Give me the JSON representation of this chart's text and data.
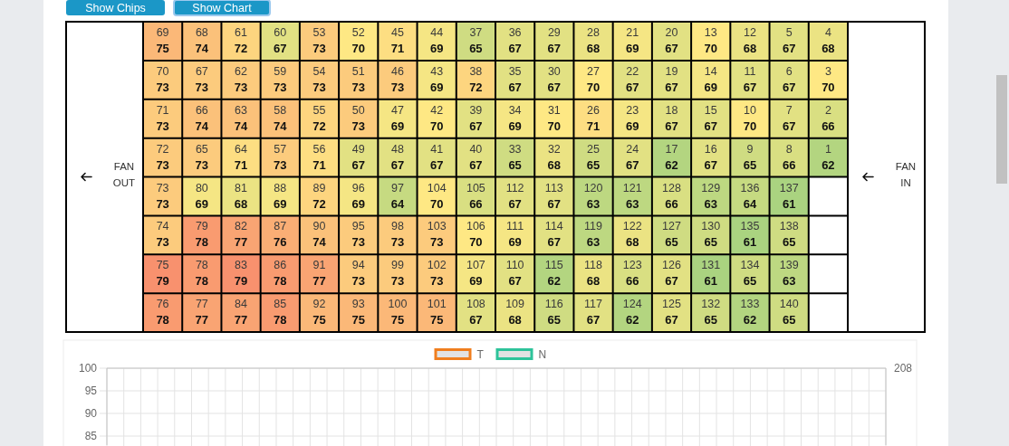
{
  "chart_data": [
    {
      "type": "heatmap",
      "categories": [
        null,
        null,
        null,
        null,
        null,
        null,
        null,
        null,
        null,
        null,
        null,
        null,
        null,
        null,
        null,
        null,
        null,
        null
      ],
      "y_categories": [
        null,
        null,
        null,
        null,
        null,
        null,
        null,
        null
      ],
      "cells": [
        [
          75,
          74,
          72,
          67,
          73,
          70,
          71,
          69,
          65,
          67,
          67,
          68,
          69,
          67,
          70,
          68,
          67,
          68
        ],
        [
          73,
          73,
          73,
          73,
          73,
          73,
          73,
          69,
          72,
          67,
          67,
          70,
          67,
          67,
          69,
          67,
          67,
          70
        ],
        [
          73,
          74,
          74,
          74,
          72,
          73,
          69,
          70,
          67,
          69,
          70,
          71,
          69,
          67,
          67,
          70,
          67,
          66
        ],
        [
          73,
          73,
          71,
          73,
          71,
          67,
          67,
          67,
          67,
          65,
          68,
          65,
          67,
          62,
          67,
          65,
          66,
          62
        ],
        [
          73,
          69,
          68,
          69,
          72,
          69,
          64,
          70,
          66,
          67,
          67,
          63,
          63,
          66,
          63,
          64,
          61,
          null
        ],
        [
          73,
          78,
          77,
          76,
          74,
          73,
          73,
          73,
          70,
          69,
          67,
          63,
          68,
          65,
          65,
          61,
          65,
          null
        ],
        [
          79,
          78,
          79,
          78,
          77,
          73,
          73,
          73,
          69,
          67,
          62,
          68,
          66,
          67,
          61,
          65,
          63,
          null
        ],
        [
          78,
          77,
          77,
          78,
          75,
          75,
          75,
          75,
          67,
          68,
          65,
          67,
          62,
          67,
          65,
          62,
          65,
          null
        ]
      ],
      "data_labels": true,
      "annotations": [
        "Show Chips",
        "Show Chart",
        "FAN OUT",
        "FAN IN",
        "69",
        "68",
        "61",
        "60",
        "53",
        "52",
        "45",
        "44",
        "37",
        "36",
        "29",
        "28",
        "21",
        "20",
        "13",
        "12",
        "5",
        "4",
        "70",
        "67",
        "62",
        "59",
        "54",
        "51",
        "46",
        "43",
        "38",
        "35",
        "30",
        "27",
        "22",
        "19",
        "14",
        "11",
        "6",
        "3",
        "71",
        "66",
        "63",
        "58",
        "55",
        "50",
        "47",
        "42",
        "39",
        "34",
        "31",
        "26",
        "23",
        "18",
        "15",
        "10",
        "7",
        "2",
        "72",
        "65",
        "64",
        "57",
        "56",
        "49",
        "48",
        "41",
        "40",
        "33",
        "32",
        "25",
        "24",
        "17",
        "16",
        "9",
        "8",
        "1",
        "73",
        "80",
        "81",
        "88",
        "89",
        "96",
        "97",
        "104",
        "105",
        "112",
        "113",
        "120",
        "121",
        "128",
        "129",
        "136",
        "137",
        "74",
        "79",
        "82",
        "87",
        "90",
        "95",
        "98",
        "103",
        "106",
        "111",
        "114",
        "119",
        "122",
        "127",
        "130",
        "135",
        "138",
        "75",
        "78",
        "83",
        "86",
        "91",
        "94",
        "99",
        "102",
        "107",
        "110",
        "115",
        "118",
        "123",
        "126",
        "131",
        "134",
        "139",
        "76",
        "77",
        "84",
        "85",
        "92",
        "93",
        "100",
        "101",
        "108",
        "109",
        "116",
        "117",
        "124",
        "125",
        "132",
        "133",
        "140"
      ]
    },
    {
      "type": "line",
      "categories": [
        null,
        null,
        null,
        null,
        null,
        null,
        null,
        null,
        null,
        null,
        null,
        null,
        null,
        null,
        null,
        null,
        null,
        null,
        null,
        null,
        null,
        null,
        null,
        null,
        null,
        null,
        null,
        null,
        null,
        null,
        null,
        null,
        null,
        null,
        null,
        null,
        null,
        null,
        null,
        null,
        null,
        null,
        null,
        null,
        null,
        null,
        null
      ],
      "series": [
        {
          "name": "T",
          "color": "#f07e1e",
          "values": [
            null,
            null,
            null,
            null,
            null,
            null,
            null,
            null,
            null,
            null,
            null,
            null,
            null,
            null,
            null,
            null,
            null,
            null,
            null,
            null,
            null,
            null,
            null,
            null,
            null,
            null,
            null,
            null,
            null,
            null,
            null,
            null,
            null,
            null,
            null,
            null,
            null,
            null,
            null,
            null,
            null,
            null,
            null,
            null,
            null,
            null,
            null
          ]
        },
        {
          "name": "N",
          "color": "#2dc39a",
          "values": [
            null,
            null,
            null,
            null,
            null,
            null,
            null,
            null,
            null,
            null,
            null,
            null,
            null,
            null,
            null,
            null,
            null,
            null,
            null,
            null,
            null,
            null,
            null,
            null,
            null,
            null,
            null,
            null,
            null,
            null,
            null,
            null,
            null,
            null,
            null,
            null,
            null,
            null,
            null,
            null,
            null,
            null,
            null,
            null,
            null,
            null,
            null
          ]
        }
      ],
      "ylim": [
        83,
        100
      ],
      "yticks": [
        85,
        90,
        95,
        100
      ],
      "annotations": [
        "208"
      ],
      "grid": true,
      "legend": "top"
    }
  ]
}
